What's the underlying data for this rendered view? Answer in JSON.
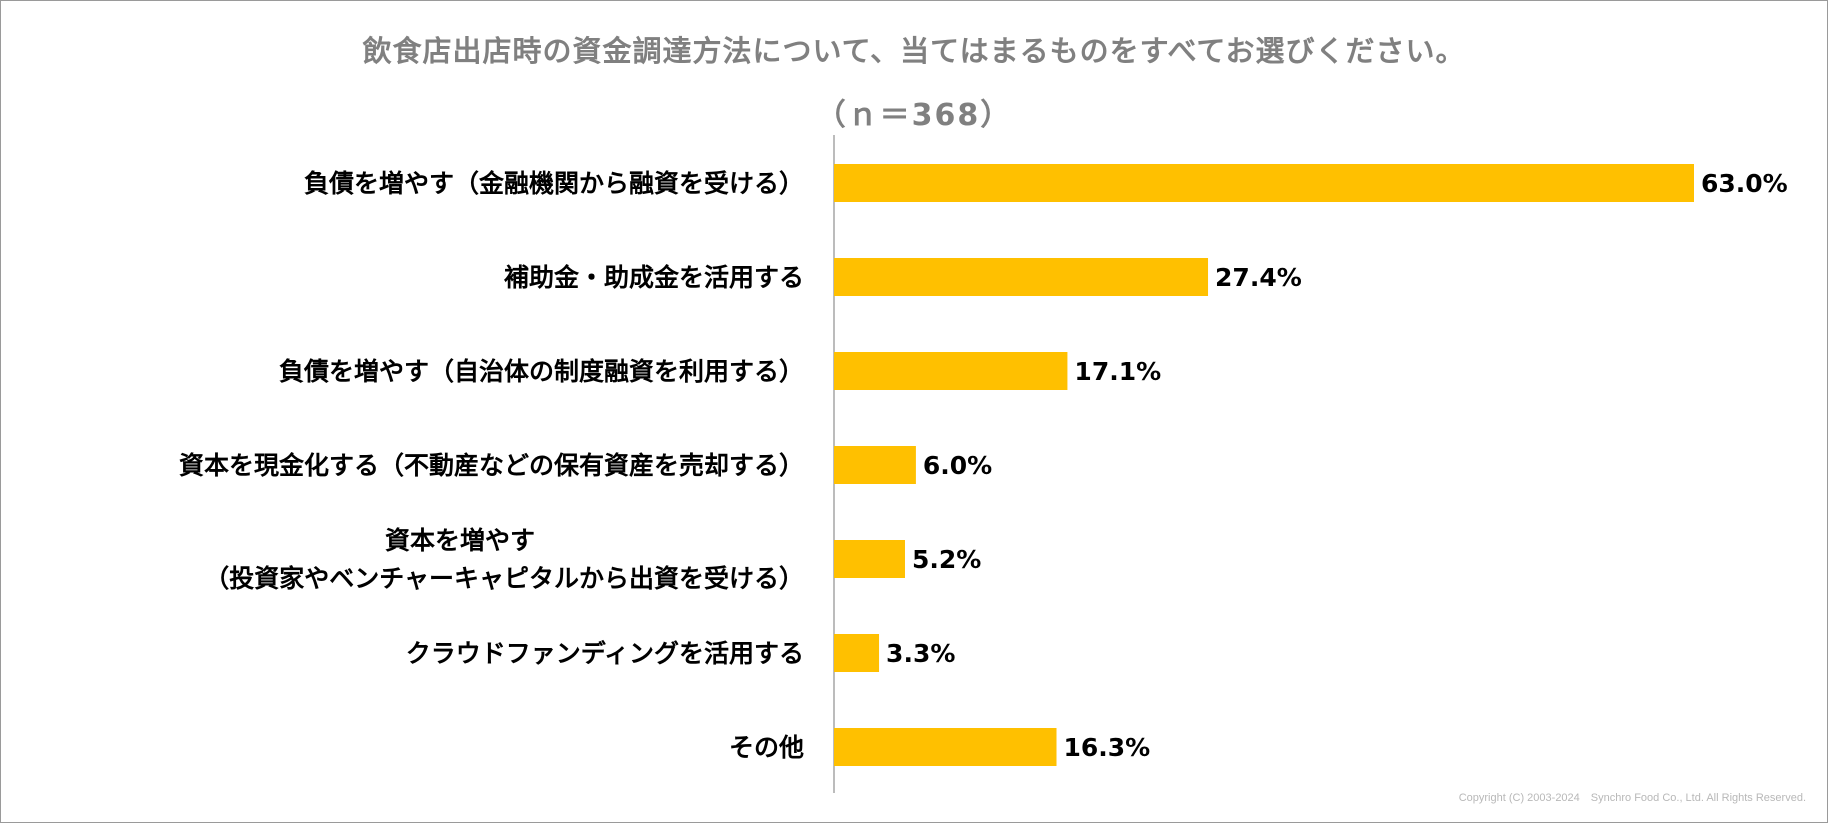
{
  "chart_data": {
    "type": "bar",
    "orientation": "horizontal",
    "title": "飲食店出店時の資金調達方法について、当てはまるものをすべてお選びください。",
    "subtitle": "（ｎ＝368）",
    "categories": [
      "負債を増やす（金融機関から融資を受ける）",
      "補助金・助成金を活用する",
      "負債を増やす（自治体の制度融資を利用する）",
      "資本を現金化する（不動産などの保有資産を売却する）",
      "資本を増やす\n（投資家やベンチャーキャピタルから出資を受ける）",
      "クラウドファンディングを活用する",
      "その他"
    ],
    "values": [
      63.0,
      27.4,
      17.1,
      6.0,
      5.2,
      3.3,
      16.3
    ],
    "value_labels": [
      "63.0%",
      "27.4%",
      "17.1%",
      "6.0%",
      "5.2%",
      "3.3%",
      "16.3%"
    ],
    "xlim": [
      0,
      63.0
    ],
    "bar_color": "#FFC000",
    "grid": false,
    "legend": "none"
  },
  "footer": {
    "copyright": "Copyright (C) 2003-2024　Synchro Food Co., Ltd. All Rights Reserved."
  }
}
